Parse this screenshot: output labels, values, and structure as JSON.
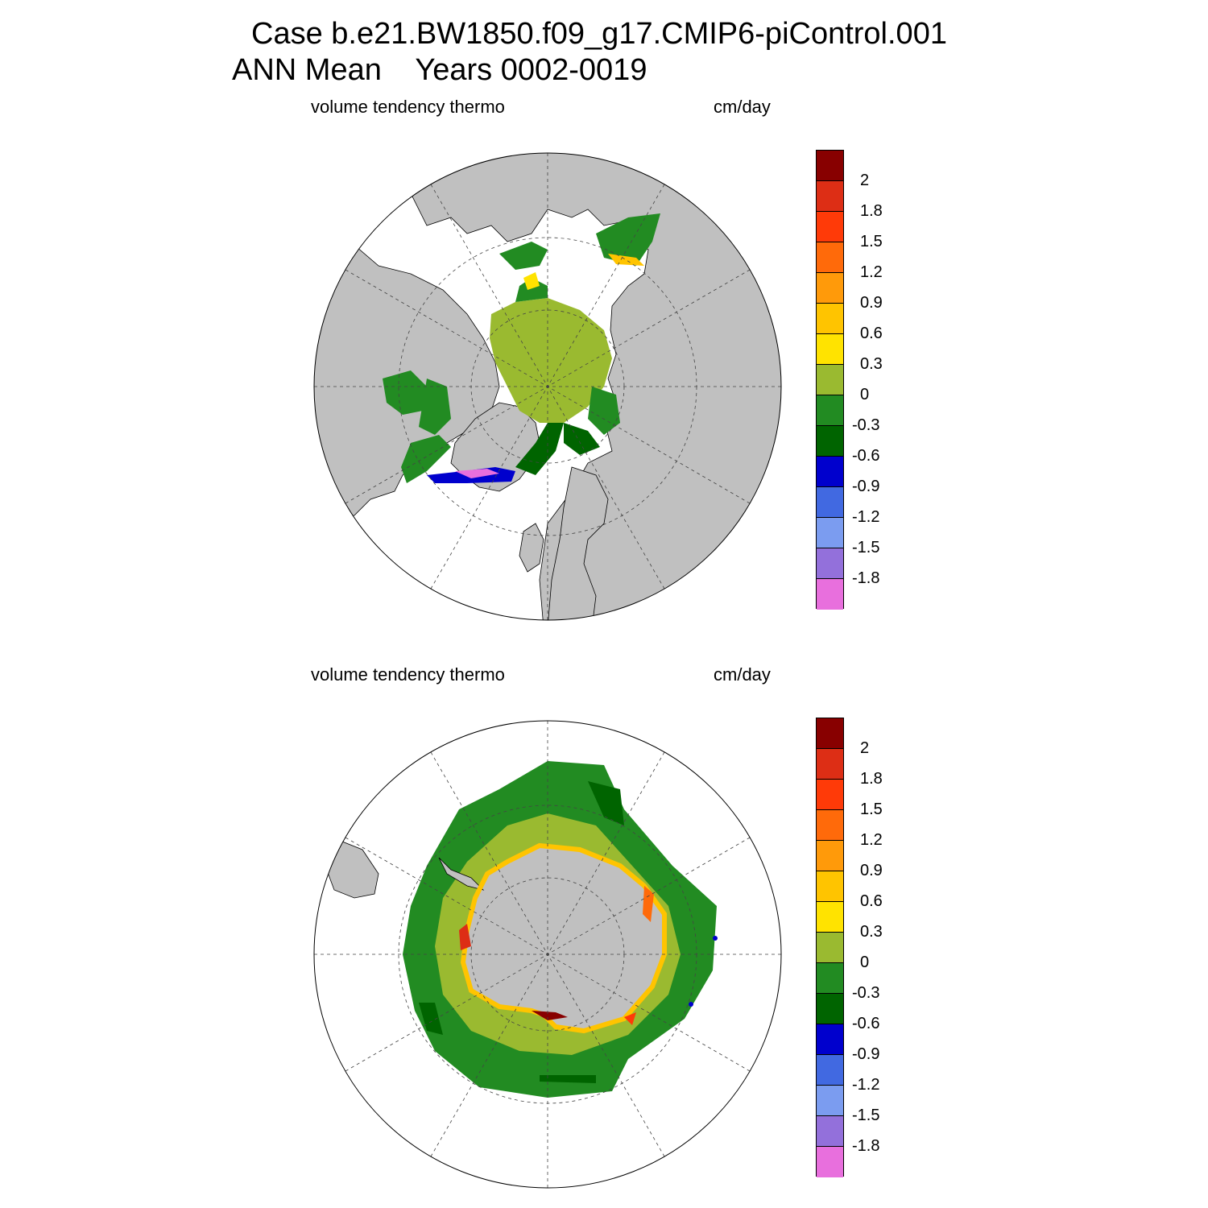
{
  "title_line1": "Case b.e21.BW1850.f09_g17.CMIP6-piControl.001",
  "title_line2": "ANN Mean    Years 0002-0019",
  "colors": {
    "land": "#c0c0c0",
    "ocean": "#ffffff",
    "grid": "#444444"
  },
  "colorbar": {
    "colors": [
      "#880000",
      "#dd2e15",
      "#ff3a08",
      "#ff6a0a",
      "#ff9a0a",
      "#ffc400",
      "#ffe300",
      "#9aba30",
      "#228b22",
      "#006400",
      "#0000cd",
      "#4169e1",
      "#7b9cf0",
      "#9370db",
      "#e86fdd"
    ],
    "labels": [
      "2",
      "1.8",
      "1.5",
      "1.2",
      "0.9",
      "0.6",
      "0.3",
      "0",
      "-0.3",
      "-0.6",
      "-0.9",
      "-1.2",
      "-1.5",
      "-1.8"
    ]
  },
  "chart_data": [
    {
      "type": "heatmap",
      "projection": "polar stereographic (north)",
      "hemisphere": "NH",
      "variable": "volume tendency thermo",
      "units": "cm/day",
      "levels": [
        -1.8,
        -1.5,
        -1.2,
        -0.9,
        -0.6,
        -0.3,
        0,
        0.3,
        0.6,
        0.9,
        1.2,
        1.5,
        1.8,
        2
      ],
      "value_range": [
        -2.1,
        2.1
      ],
      "description_values": {
        "central_arctic": 0.15,
        "arctic_margins": -0.15,
        "hudson_baffin": -0.2,
        "barents_kara": -0.45,
        "labrador_newfoundland": -0.5,
        "okhotsk_edge": 0.45,
        "gulf_st_lawrence": -1.9,
        "greenland_east_coast": -0.75
      }
    },
    {
      "type": "heatmap",
      "projection": "polar stereographic (south)",
      "hemisphere": "SH",
      "variable": "volume tendency thermo",
      "units": "cm/day",
      "levels": [
        -1.8,
        -1.5,
        -1.2,
        -0.9,
        -0.6,
        -0.3,
        0,
        0.3,
        0.6,
        0.9,
        1.2,
        1.5,
        1.8,
        2
      ],
      "value_range": [
        -2.1,
        2.1
      ],
      "description_values": {
        "outer_pack_ice": -0.15,
        "pack_ice_band": 0.15,
        "coastal_polynyas": 0.75,
        "ross_sea_polynya": 2.05,
        "weddell_sea_polynya": 1.9,
        "outer_edge_bands": -0.45,
        "isolated_spots": -0.75
      }
    }
  ],
  "panels": [
    {
      "label_left": "volume tendency thermo",
      "label_right": "cm/day"
    },
    {
      "label_left": "volume tendency thermo",
      "label_right": "cm/day"
    }
  ]
}
